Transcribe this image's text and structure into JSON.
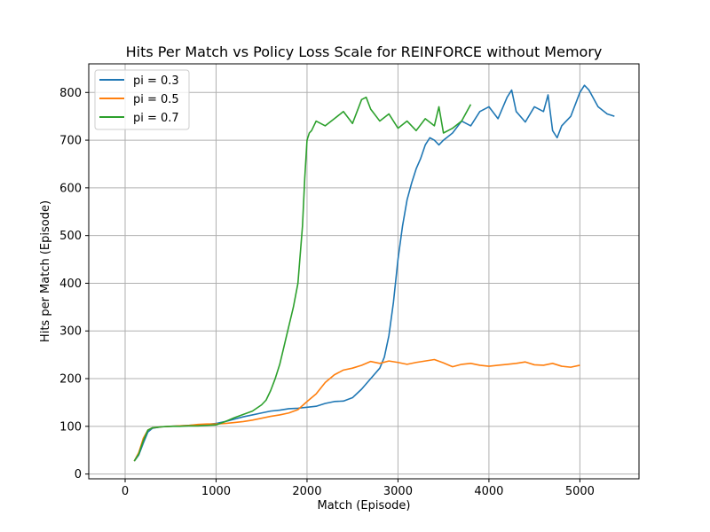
{
  "chart_data": {
    "type": "line",
    "title": "Hits Per Match vs Policy Loss Scale for REINFORCE without Memory",
    "xlabel": "Match (Episode)",
    "ylabel": "Hits per Match (Episode)",
    "xlim": [
      -400,
      5650
    ],
    "ylim": [
      -10,
      860
    ],
    "xticks": [
      0,
      1000,
      2000,
      3000,
      4000,
      5000
    ],
    "yticks": [
      0,
      100,
      200,
      300,
      400,
      500,
      600,
      700,
      800
    ],
    "grid": true,
    "legend_position": "top-left",
    "series": [
      {
        "name": "pi = 0.3",
        "color": "#1f77b4",
        "x": [
          100,
          150,
          200,
          250,
          300,
          400,
          500,
          600,
          700,
          800,
          900,
          1000,
          1100,
          1200,
          1300,
          1400,
          1500,
          1600,
          1700,
          1800,
          1900,
          2000,
          2100,
          2200,
          2300,
          2400,
          2500,
          2600,
          2700,
          2800,
          2850,
          2900,
          2950,
          3000,
          3050,
          3100,
          3150,
          3200,
          3250,
          3300,
          3350,
          3400,
          3450,
          3500,
          3600,
          3700,
          3800,
          3900,
          4000,
          4100,
          4200,
          4250,
          4300,
          4400,
          4500,
          4600,
          4650,
          4700,
          4750,
          4800,
          4900,
          5000,
          5050,
          5100,
          5200,
          5300,
          5380
        ],
        "y": [
          27,
          40,
          65,
          88,
          96,
          99,
          100,
          101,
          102,
          103,
          104,
          106,
          110,
          115,
          120,
          124,
          128,
          132,
          134,
          137,
          138,
          140,
          142,
          148,
          152,
          153,
          160,
          178,
          200,
          222,
          245,
          290,
          360,
          450,
          520,
          575,
          610,
          640,
          662,
          690,
          705,
          700,
          690,
          700,
          715,
          740,
          730,
          760,
          770,
          745,
          790,
          805,
          760,
          738,
          770,
          760,
          795,
          720,
          705,
          730,
          750,
          800,
          815,
          805,
          770,
          755,
          750
        ]
      },
      {
        "name": "pi = 0.5",
        "color": "#ff7f0e",
        "x": [
          100,
          150,
          200,
          250,
          300,
          400,
          500,
          600,
          700,
          800,
          900,
          1000,
          1100,
          1200,
          1300,
          1400,
          1500,
          1600,
          1700,
          1800,
          1900,
          2000,
          2100,
          2200,
          2300,
          2400,
          2500,
          2600,
          2700,
          2800,
          2900,
          3000,
          3100,
          3200,
          3300,
          3400,
          3500,
          3600,
          3700,
          3800,
          3900,
          4000,
          4100,
          4200,
          4300,
          4400,
          4500,
          4600,
          4700,
          4800,
          4900,
          5000
        ],
        "y": [
          27,
          45,
          75,
          92,
          97,
          99,
          100,
          101,
          102,
          104,
          105,
          105,
          106,
          108,
          110,
          113,
          117,
          121,
          124,
          128,
          135,
          152,
          168,
          192,
          208,
          218,
          222,
          228,
          236,
          232,
          237,
          234,
          230,
          234,
          237,
          240,
          233,
          225,
          230,
          232,
          228,
          226,
          228,
          230,
          232,
          235,
          229,
          228,
          232,
          226,
          224,
          228
        ]
      },
      {
        "name": "pi = 0.7",
        "color": "#2ca02c",
        "x": [
          100,
          150,
          200,
          250,
          300,
          400,
          500,
          600,
          700,
          800,
          900,
          1000,
          1100,
          1200,
          1300,
          1400,
          1500,
          1550,
          1600,
          1650,
          1700,
          1750,
          1800,
          1850,
          1900,
          1950,
          1975,
          2000,
          2025,
          2050,
          2100,
          2200,
          2300,
          2400,
          2500,
          2600,
          2650,
          2700,
          2800,
          2900,
          3000,
          3100,
          3200,
          3300,
          3400,
          3450,
          3500,
          3600,
          3700,
          3800
        ],
        "y": [
          27,
          42,
          70,
          92,
          97,
          99,
          100,
          100,
          101,
          101,
          102,
          103,
          110,
          118,
          125,
          132,
          145,
          155,
          175,
          200,
          230,
          270,
          310,
          350,
          400,
          520,
          620,
          700,
          715,
          720,
          740,
          730,
          745,
          760,
          735,
          785,
          790,
          765,
          740,
          755,
          725,
          740,
          720,
          745,
          730,
          770,
          715,
          725,
          740,
          775
        ]
      }
    ]
  }
}
